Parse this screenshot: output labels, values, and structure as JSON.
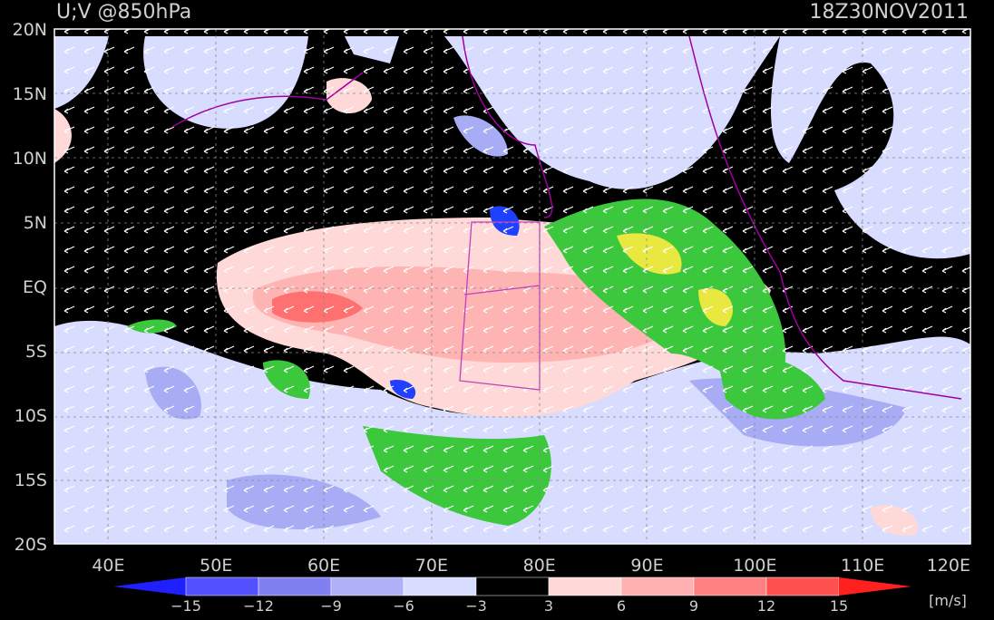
{
  "title": "U;V @850hPa",
  "time": "18Z30NOV2011",
  "map": {
    "lat_labels": [
      "20N",
      "15N",
      "10N",
      "5N",
      "EQ",
      "5S",
      "10S",
      "15S",
      "20S"
    ],
    "lon_labels": [
      "40E",
      "50E",
      "60E",
      "70E",
      "80E",
      "90E",
      "100E",
      "110E",
      "120E"
    ]
  },
  "colorbar": {
    "labels": [
      "−15",
      "−12",
      "−9",
      "−6",
      "−3",
      "3",
      "6",
      "9",
      "12",
      "15"
    ],
    "units": "[m/s]"
  }
}
